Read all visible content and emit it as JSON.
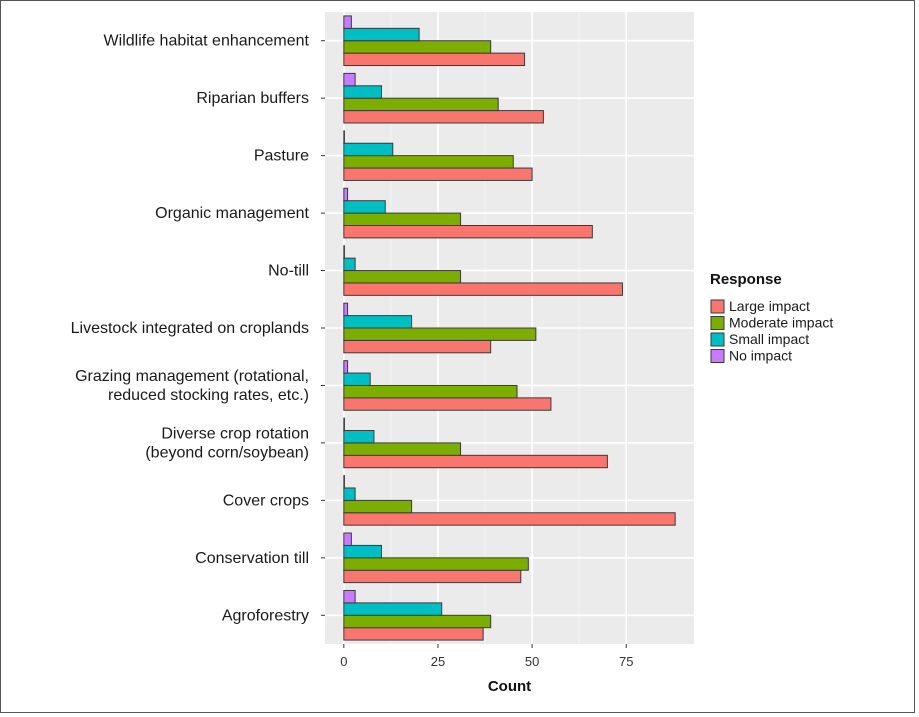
{
  "chart_data": {
    "type": "bar",
    "orientation": "horizontal",
    "title": "",
    "xlabel": "Count",
    "ylabel": "",
    "xlim": [
      -5,
      93
    ],
    "x_ticks": [
      0,
      25,
      50,
      75
    ],
    "grid": true,
    "legend": {
      "title": "Response",
      "placement": "right"
    },
    "categories": [
      [
        "Wildlife habitat enhancement"
      ],
      [
        "Riparian buffers"
      ],
      [
        "Pasture"
      ],
      [
        "Organic management"
      ],
      [
        "No-till"
      ],
      [
        "Livestock integrated on croplands"
      ],
      [
        "Grazing management (rotational,",
        "reduced stocking rates, etc.)"
      ],
      [
        "Diverse crop rotation",
        "(beyond corn/soybean)"
      ],
      [
        "Cover crops"
      ],
      [
        "Conservation till"
      ],
      [
        "Agroforestry"
      ]
    ],
    "series": [
      {
        "name": "Large impact",
        "color": "#F8766D",
        "values": [
          48,
          53,
          50,
          66,
          74,
          39,
          55,
          70,
          88,
          47,
          37
        ]
      },
      {
        "name": "Moderate impact",
        "color": "#7CAE00",
        "values": [
          39,
          41,
          45,
          31,
          31,
          51,
          46,
          31,
          18,
          49,
          39
        ]
      },
      {
        "name": "Small impact",
        "color": "#00BFC4",
        "values": [
          20,
          10,
          13,
          11,
          3,
          18,
          7,
          8,
          3,
          10,
          26
        ]
      },
      {
        "name": "No impact",
        "color": "#C77CFF",
        "values": [
          2,
          3,
          0,
          1,
          0,
          1,
          1,
          0,
          0,
          2,
          3
        ]
      }
    ]
  }
}
